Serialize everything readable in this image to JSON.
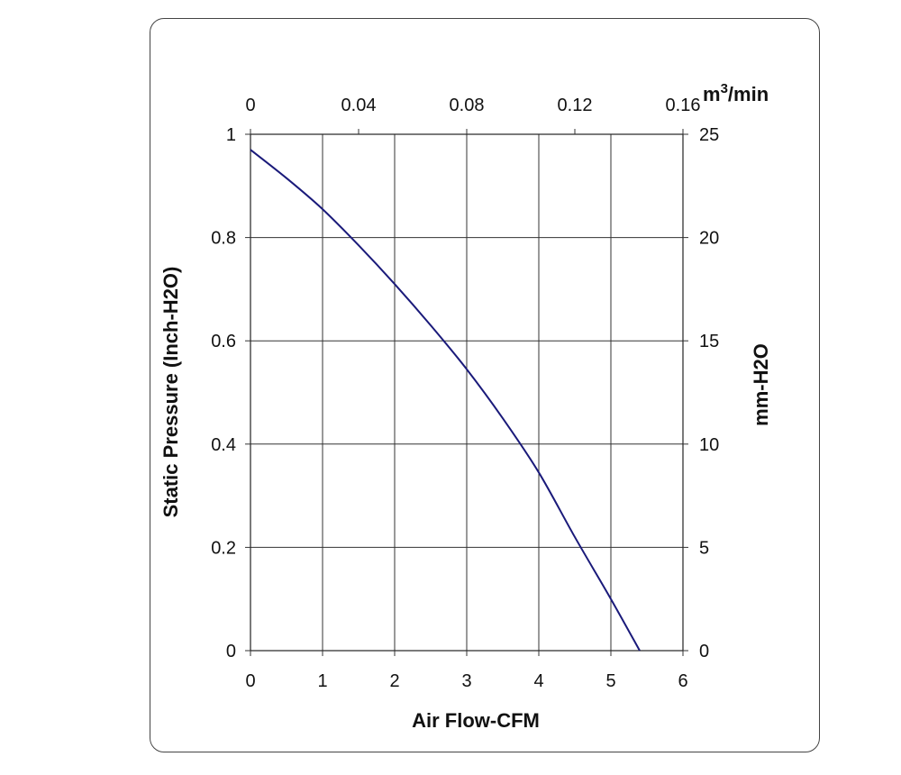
{
  "chart_data": {
    "type": "line",
    "xlabel": "Air Flow-CFM",
    "ylabel": "Static Pressure (Inch-H2O)",
    "y2label": "mm-H2O",
    "x2label_base": "m",
    "x2label_sup": "3",
    "x2label_rest": "/min",
    "xlim": [
      0,
      6
    ],
    "ylim": [
      0,
      1
    ],
    "y2lim": [
      0,
      25
    ],
    "x2lim": [
      0,
      0.16
    ],
    "x_ticks": [
      "0",
      "1",
      "2",
      "3",
      "4",
      "5",
      "6"
    ],
    "y_ticks": [
      "0",
      "0.2",
      "0.4",
      "0.6",
      "0.8",
      "1"
    ],
    "y2_ticks": [
      "0",
      "5",
      "10",
      "15",
      "20",
      "25"
    ],
    "x2_ticks": [
      "0",
      "0.04",
      "0.08",
      "0.12",
      "0.16"
    ],
    "grid": true,
    "line_color": "#1a1a7a",
    "series": [
      {
        "x": [
          0,
          0.5,
          1.0,
          1.5,
          2.0,
          2.5,
          3.0,
          3.5,
          4.0,
          4.5,
          5.0,
          5.4
        ],
        "y": [
          0.97,
          0.915,
          0.855,
          0.785,
          0.71,
          0.63,
          0.545,
          0.45,
          0.345,
          0.22,
          0.1,
          0.0
        ]
      }
    ]
  }
}
